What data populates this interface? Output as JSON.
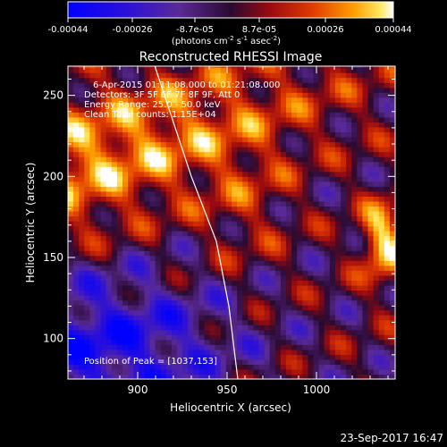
{
  "colorbar": {
    "ticks": [
      "-0.00044",
      "-0.00026",
      "-8.7e-05",
      "8.7e-05",
      "0.00026",
      "0.00044"
    ],
    "units_prefix": "(photons cm",
    "units_exp1": "-2",
    "units_mid": " s",
    "units_exp2": "-1",
    "units_mid2": " asec",
    "units_exp3": "-2",
    "units_suffix": ")"
  },
  "chart_data": {
    "type": "heatmap",
    "title": "Reconstructed RHESSI Image",
    "xlabel": "Heliocentric X (arcsec)",
    "ylabel": "Heliocentric Y (arcsec)",
    "xlim": [
      861,
      1044
    ],
    "ylim": [
      75,
      268
    ],
    "x_ticks": [
      900,
      950,
      1000
    ],
    "y_ticks": [
      100,
      150,
      200,
      250
    ],
    "color_range": [
      -0.00044,
      0.00044
    ],
    "colormap": "blue-purple-red-orange-yellow-white",
    "limb": [
      [
        909,
        270
      ],
      [
        930,
        200
      ],
      [
        944,
        160
      ],
      [
        951,
        120
      ],
      [
        956,
        75
      ]
    ],
    "annotations": [
      "6-Apr-2015 01:11:08.000 to 01:21:08.000",
      "Detectors: 3F 5F 6F 7F 8F 9F, Att 0",
      "Energy Range: 25.0 - 50.0 keV",
      "Clean     Total counts: 1.15E+04"
    ],
    "peak_text": "Position of Peak = [1037,153]",
    "peak": [
      1037,
      153
    ]
  },
  "footer": {
    "timestamp": "23-Sep-2017 16:47"
  }
}
